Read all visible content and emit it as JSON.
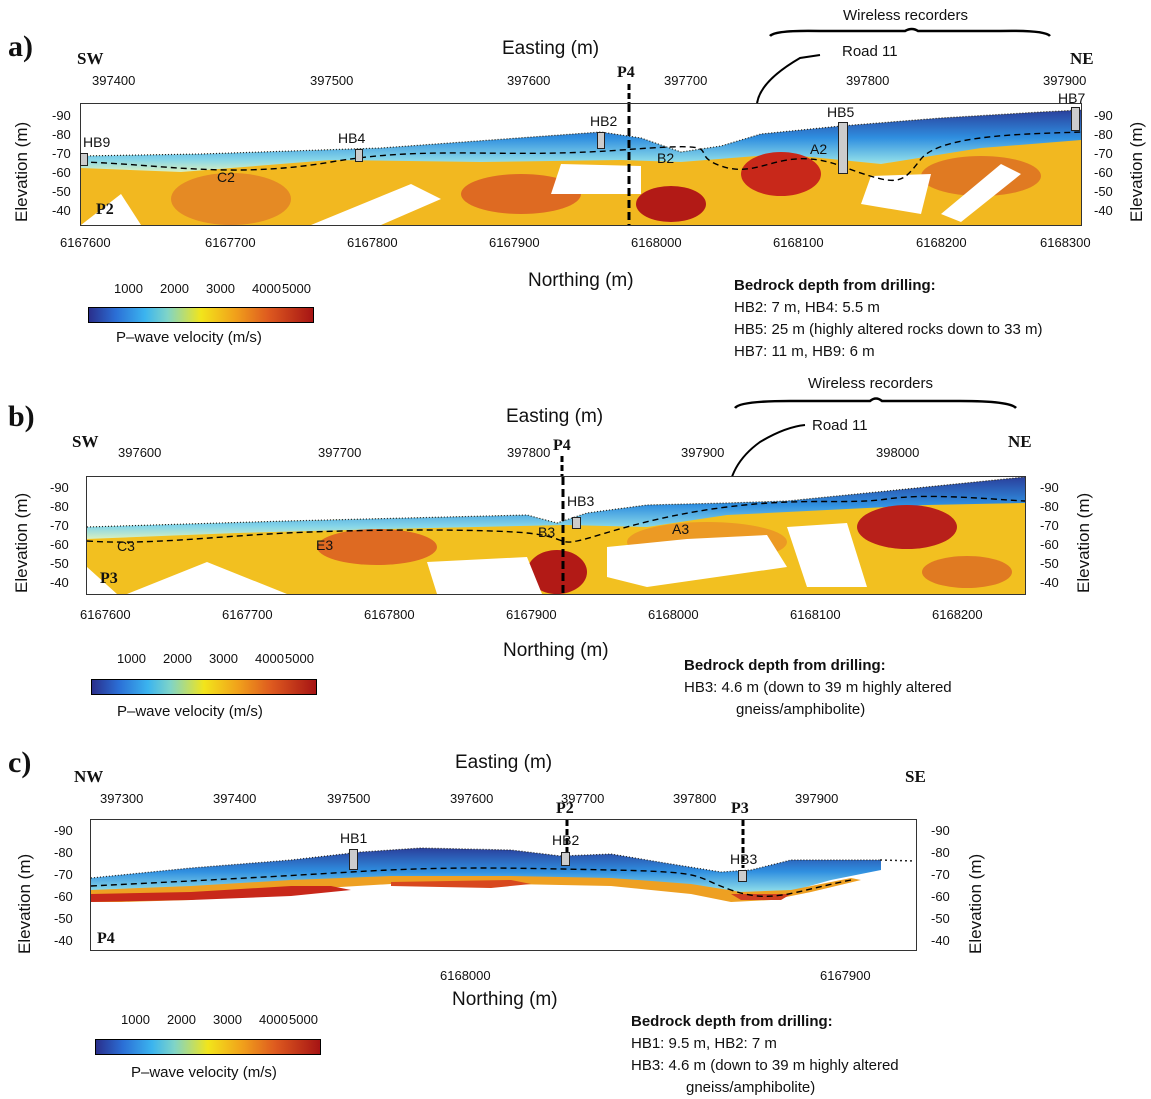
{
  "colors": {
    "low": "#2a2f8c",
    "mid": "#f2e51b",
    "high": "#a61414"
  },
  "legend": {
    "ticks": [
      "1000",
      "2000",
      "3000",
      "4000",
      "5000"
    ],
    "title": "P–wave velocity (m/s)"
  },
  "panels": [
    {
      "label": "a)",
      "dir_left": "SW",
      "dir_right": "NE",
      "easting_title": "Easting (m)",
      "northing_title": "Northing (m)",
      "elev_title": "Elevation (m)",
      "easting_ticks": [
        "397400",
        "397500",
        "397600",
        "397700",
        "397800",
        "397900"
      ],
      "northing_ticks": [
        "6167600",
        "6167700",
        "6167800",
        "6167900",
        "6168000",
        "6168100",
        "6168200",
        "6168300"
      ],
      "elev_ticks": [
        "-90",
        "-80",
        "-70",
        "-60",
        "-50",
        "-40"
      ],
      "profile": "P2",
      "cross": "P4",
      "wireless": "Wireless recorders",
      "road": "Road 11",
      "boreholes": [
        "HB9",
        "HB4",
        "HB2",
        "HB5",
        "HB7"
      ],
      "zones": [
        "C2",
        "B2",
        "A2"
      ],
      "drill_title": "Bedrock depth from drilling:",
      "drill_lines": [
        "HB2: 7 m, HB4: 5.5 m",
        "HB5: 25 m (highly altered rocks down to 33 m)",
        "HB7: 11 m,  HB9: 6 m"
      ]
    },
    {
      "label": "b)",
      "dir_left": "SW",
      "dir_right": "NE",
      "easting_title": "Easting (m)",
      "northing_title": "Northing (m)",
      "elev_title": "Elevation (m)",
      "easting_ticks": [
        "397600",
        "397700",
        "397800",
        "397900",
        "398000"
      ],
      "northing_ticks": [
        "6167600",
        "6167700",
        "6167800",
        "6167900",
        "6168000",
        "6168100",
        "6168200"
      ],
      "elev_ticks": [
        "-90",
        "-80",
        "-70",
        "-60",
        "-50",
        "-40"
      ],
      "profile": "P3",
      "cross": "P4",
      "wireless": "Wireless recorders",
      "road": "Road 11",
      "boreholes": [
        "HB3"
      ],
      "zones": [
        "C3",
        "E3",
        "B3",
        "A3"
      ],
      "drill_title": "Bedrock depth from drilling:",
      "drill_lines": [
        "HB3: 4.6 m (down to 39 m highly altered",
        "gneiss/amphibolite)"
      ]
    },
    {
      "label": "c)",
      "dir_left": "NW",
      "dir_right": "SE",
      "easting_title": "Easting (m)",
      "northing_title": "Northing (m)",
      "elev_title": "Elevation (m)",
      "easting_ticks": [
        "397300",
        "397400",
        "397500",
        "397600",
        "397700",
        "397800",
        "397900"
      ],
      "northing_ticks": [
        "6168000",
        "6167900"
      ],
      "elev_ticks": [
        "-90",
        "-80",
        "-70",
        "-60",
        "-50",
        "-40"
      ],
      "profile": "P4",
      "cross_a": "P2",
      "cross_b": "P3",
      "boreholes": [
        "HB1",
        "HB2",
        "HB3"
      ],
      "drill_title": "Bedrock depth from drilling:",
      "drill_lines": [
        "HB1: 9.5 m,  HB2: 7 m",
        "HB3: 4.6 m (down to 39 m highly altered",
        "gneiss/amphibolite)"
      ]
    }
  ]
}
